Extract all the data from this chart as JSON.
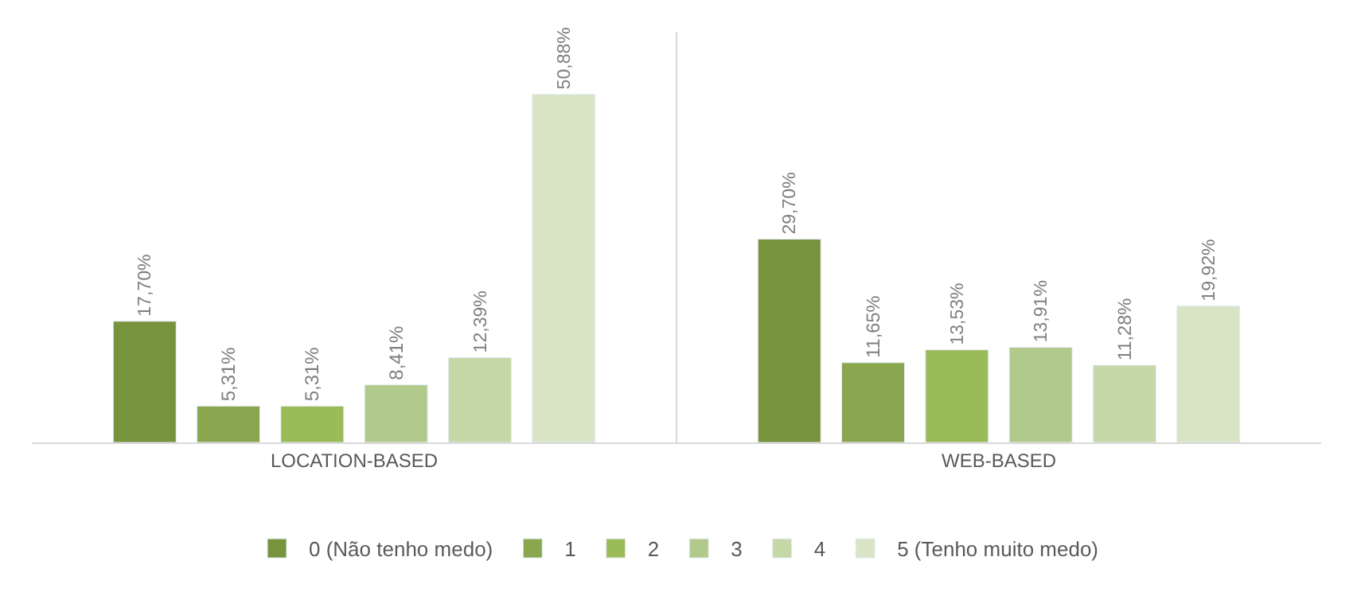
{
  "chart_data": {
    "type": "bar",
    "categories": [
      "LOCATION-BASED",
      "WEB-BASED"
    ],
    "series": [
      {
        "name": "0 (Não tenho medo)",
        "color": "#77933c",
        "values": [
          17.7,
          29.7
        ],
        "value_labels": [
          "17,70%",
          "29,70%"
        ]
      },
      {
        "name": "1",
        "color": "#8aa64e",
        "values": [
          5.31,
          11.65
        ],
        "value_labels": [
          "5,31%",
          "11,65%"
        ]
      },
      {
        "name": "2",
        "color": "#9bbb59",
        "values": [
          5.31,
          13.53
        ],
        "value_labels": [
          "5,31%",
          "13,53%"
        ]
      },
      {
        "name": "3",
        "color": "#b1c98a",
        "values": [
          8.41,
          13.91
        ],
        "value_labels": [
          "8,41%",
          "13,91%"
        ]
      },
      {
        "name": "4",
        "color": "#c6d8a7",
        "values": [
          12.39,
          11.28
        ],
        "value_labels": [
          "12,39%",
          "11,28%"
        ]
      },
      {
        "name": "5 (Tenho muito medo)",
        "color": "#d8e4c4",
        "values": [
          50.88,
          19.92
        ],
        "value_labels": [
          "50,88%",
          "19,92%"
        ]
      }
    ],
    "ylim": [
      0,
      60
    ],
    "tick_labels": "x",
    "grid": "x",
    "legend": "bottom"
  }
}
